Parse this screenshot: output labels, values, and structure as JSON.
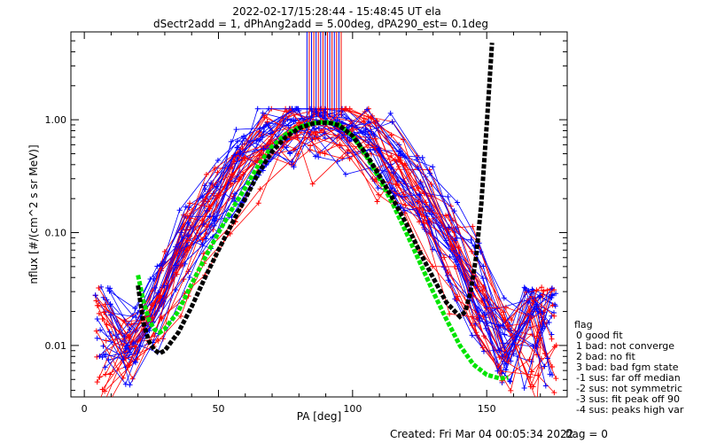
{
  "header": {
    "line1": "2022-02-17/15:28:44 - 15:48:45 UT ela",
    "line2": "dSectr2add = 1, dPhAng2add = 5.00deg, dPA290_est=   0.1deg"
  },
  "footer": {
    "created": "Created: Fri Mar 04 00:05:34 2022",
    "flag": "flag = 0"
  },
  "legend": {
    "title": "flag",
    "items": [
      "0 good fit",
      "1 bad: not converge",
      "2 bad: no fit",
      "3 bad: bad fgm state",
      "-1 sus: far off median",
      "-2 sus: not symmetric",
      "-3 sus: fit peak off 90",
      "-4 sus: peaks high var"
    ]
  },
  "colors": {
    "red": "#ff0000",
    "blue": "#0000ff",
    "green": "#00e400",
    "black": "#000000"
  },
  "chart_data": {
    "type": "line",
    "title": "2022-02-17/15:28:44 - 15:48:45 UT ela",
    "subtitle": "dSectr2add = 1, dPhAng2add = 5.00deg, dPA290_est=   0.1deg",
    "xlabel": "PA [deg]",
    "ylabel": "nflux [#/(cm^2 s sr MeV)]",
    "xlim": [
      -5,
      180
    ],
    "ylim": [
      0.0035,
      6.0
    ],
    "yscale": "log",
    "xticks": [
      0,
      50,
      100,
      150
    ],
    "yticks": [
      0.01,
      0.1,
      1.0
    ],
    "ytick_labels": [
      "0.01",
      "0.10",
      "1.00"
    ],
    "series": [
      {
        "color": "green",
        "x": [
          20,
          22,
          24,
          26,
          28,
          30,
          35,
          40,
          45,
          50,
          55,
          60,
          65,
          70,
          75,
          80,
          85,
          88,
          90,
          92,
          95,
          100,
          105,
          110,
          115,
          120,
          125,
          130,
          135,
          140,
          145,
          150,
          155,
          158
        ],
        "y": [
          0.042,
          0.025,
          0.017,
          0.014,
          0.013,
          0.014,
          0.02,
          0.035,
          0.06,
          0.1,
          0.16,
          0.25,
          0.4,
          0.58,
          0.74,
          0.86,
          0.93,
          0.95,
          0.95,
          0.94,
          0.9,
          0.72,
          0.48,
          0.3,
          0.18,
          0.1,
          0.055,
          0.03,
          0.017,
          0.01,
          0.0068,
          0.0055,
          0.0051,
          0.0052
        ]
      },
      {
        "color": "black",
        "x": [
          20,
          22,
          24,
          26,
          28,
          30,
          35,
          40,
          45,
          50,
          55,
          60,
          65,
          70,
          75,
          80,
          85,
          88,
          90,
          92,
          95,
          100,
          105,
          110,
          115,
          120,
          125,
          130,
          135,
          140,
          142,
          144,
          146,
          148,
          150,
          152
        ],
        "y": [
          0.034,
          0.016,
          0.011,
          0.0092,
          0.0085,
          0.009,
          0.013,
          0.022,
          0.04,
          0.07,
          0.12,
          0.2,
          0.34,
          0.52,
          0.7,
          0.84,
          0.92,
          0.94,
          0.94,
          0.93,
          0.89,
          0.72,
          0.5,
          0.32,
          0.2,
          0.12,
          0.068,
          0.04,
          0.024,
          0.018,
          0.02,
          0.03,
          0.06,
          0.18,
          0.9,
          4.8
        ]
      }
    ]
  }
}
